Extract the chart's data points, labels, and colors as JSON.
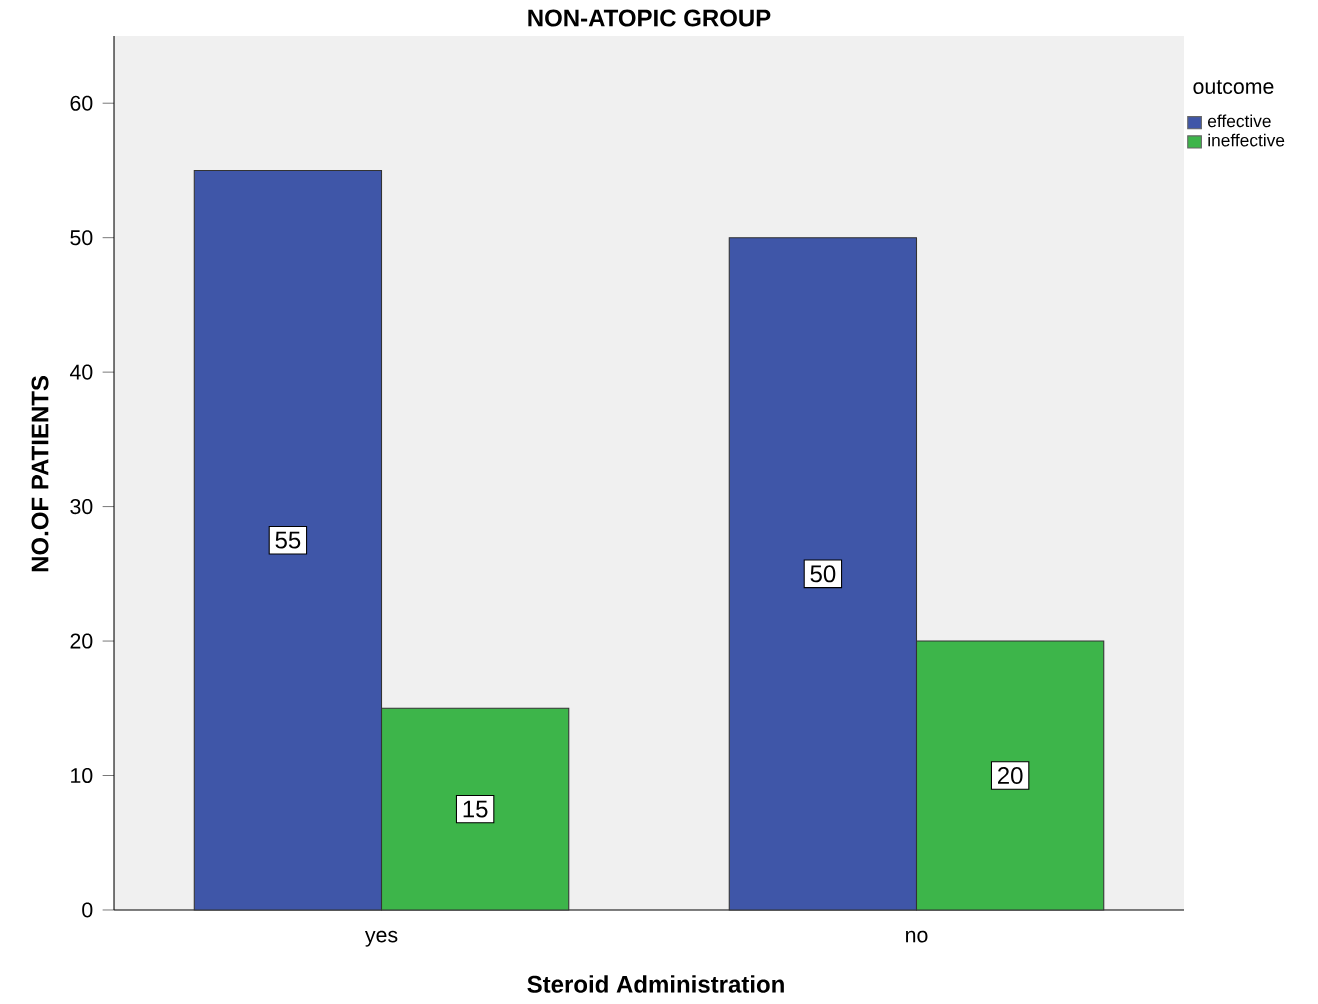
{
  "chart_data": {
    "type": "bar",
    "title": "NON-ATOPIC GROUP",
    "xlabel": "Steroid Administration",
    "ylabel": "NO.OF PATIENTS",
    "legend_title": "outcome",
    "categories": [
      "yes",
      "no"
    ],
    "series": [
      {
        "name": "effective",
        "color": "#3f56a8",
        "values": [
          55,
          50
        ]
      },
      {
        "name": "ineffective",
        "color": "#3db54a",
        "values": [
          15,
          20
        ]
      }
    ],
    "ylim": [
      0,
      65
    ],
    "yticks": [
      0,
      10,
      20,
      30,
      40,
      50,
      60
    ],
    "grid": false,
    "legend": "top right",
    "data_labels": true
  }
}
